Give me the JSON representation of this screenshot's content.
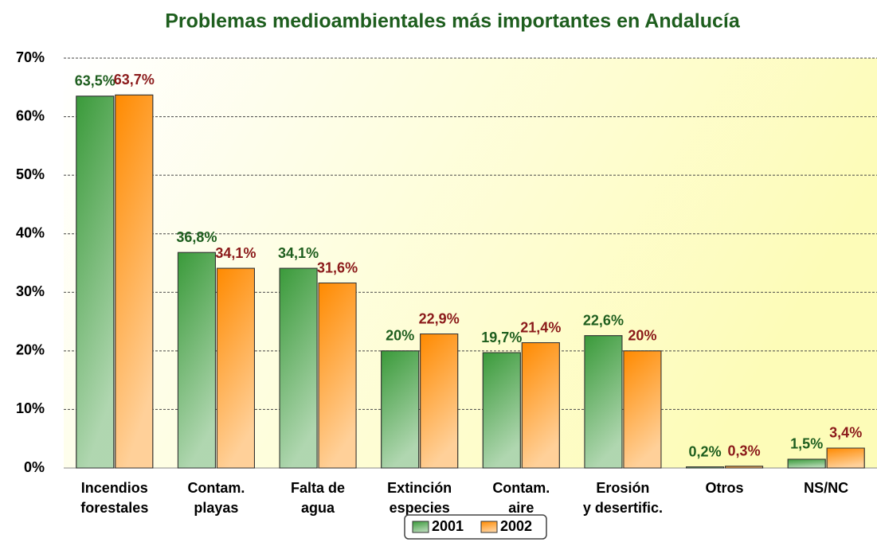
{
  "chart_data": {
    "type": "bar",
    "title": "Problemas medioambientales más importantes en Andalucía",
    "categories": [
      "Incendios\nforestales",
      "Contam.\nplayas",
      "Falta de\nagua",
      "Extinción\nespecies",
      "Contam.\naire",
      "Erosión\ny desertific.",
      "Otros",
      "NS/NC"
    ],
    "series": [
      {
        "name": "2001",
        "color": "#3a9a3a",
        "label_color": "#1e5e1e",
        "values": [
          63.5,
          36.8,
          34.1,
          20,
          19.7,
          22.6,
          0.2,
          1.5
        ],
        "value_labels": [
          "63,5%",
          "36,8%",
          "34,1%",
          "20%",
          "19,7%",
          "22,6%",
          "0,2%",
          "1,5%"
        ]
      },
      {
        "name": "2002",
        "color": "#ff8a00",
        "label_color": "#8b1a1a",
        "values": [
          63.7,
          34.1,
          31.6,
          22.9,
          21.4,
          20,
          0.3,
          3.4
        ],
        "value_labels": [
          "63,7%",
          "34,1%",
          "31,6%",
          "22,9%",
          "21,4%",
          "20%",
          "0,3%",
          "3,4%"
        ]
      }
    ],
    "ylim": [
      0,
      70
    ],
    "yticks": [
      {
        "value": 0,
        "label": "0%"
      },
      {
        "value": 10,
        "label": "10%"
      },
      {
        "value": 20,
        "label": "20%"
      },
      {
        "value": 30,
        "label": "30%"
      },
      {
        "value": 40,
        "label": "40%"
      },
      {
        "value": 50,
        "label": "50%"
      },
      {
        "value": 60,
        "label": "60%"
      },
      {
        "value": 70,
        "label": "70%"
      }
    ],
    "grid": true,
    "legend": "bottom"
  }
}
